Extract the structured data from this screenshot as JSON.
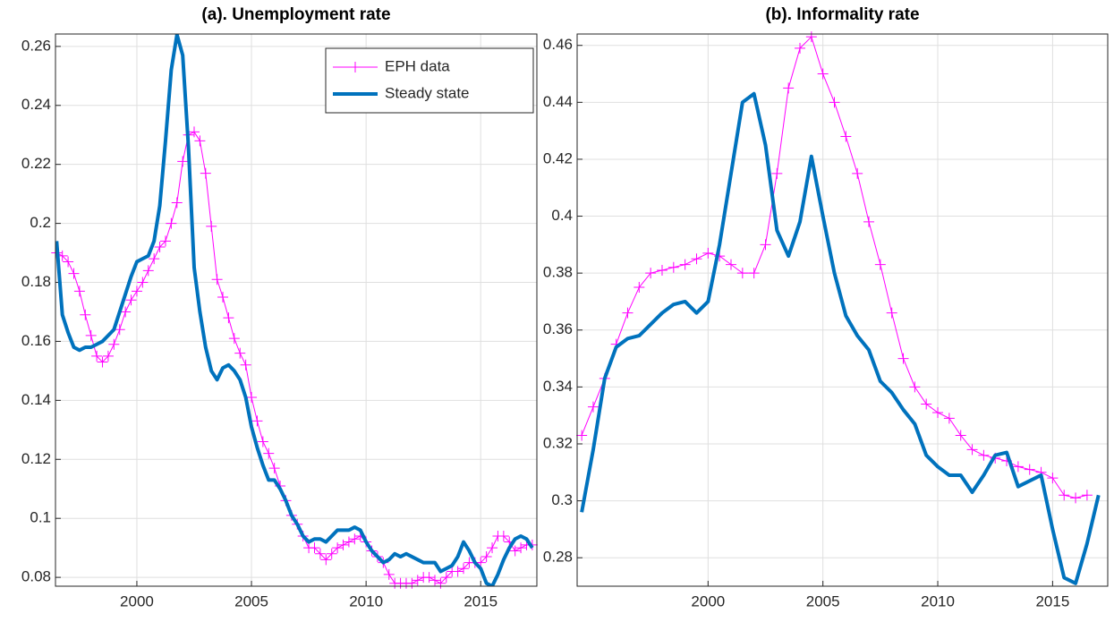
{
  "chart_data": [
    {
      "type": "line",
      "title": "(a). Unemployment rate",
      "x": [
        1996.5,
        1996.75,
        1997,
        1997.25,
        1997.5,
        1997.75,
        1998,
        1998.25,
        1998.5,
        1998.75,
        1999,
        1999.25,
        1999.5,
        1999.75,
        2000,
        2000.25,
        2000.5,
        2000.75,
        2001,
        2001.25,
        2001.5,
        2001.75,
        2002,
        2002.25,
        2002.5,
        2002.75,
        2003,
        2003.25,
        2003.5,
        2003.75,
        2004,
        2004.25,
        2004.5,
        2004.75,
        2005,
        2005.25,
        2005.5,
        2005.75,
        2006,
        2006.25,
        2006.5,
        2006.75,
        2007,
        2007.25,
        2007.5,
        2007.75,
        2008,
        2008.25,
        2008.5,
        2008.75,
        2009,
        2009.25,
        2009.5,
        2009.75,
        2010,
        2010.25,
        2010.5,
        2010.75,
        2011,
        2011.25,
        2011.5,
        2011.75,
        2012,
        2012.25,
        2012.5,
        2012.75,
        2013,
        2013.25,
        2013.5,
        2013.75,
        2014,
        2014.25,
        2014.5,
        2014.75,
        2015,
        2015.25,
        2015.5,
        2015.75,
        2016,
        2016.25,
        2016.5,
        2016.75,
        2017,
        2017.25
      ],
      "series": [
        {
          "name": "EPH data",
          "color": "#ff00ff",
          "marker": "+",
          "line_width": 1,
          "values": [
            0.19,
            0.189,
            0.187,
            0.183,
            0.177,
            0.169,
            0.162,
            0.155,
            0.153,
            0.155,
            0.159,
            0.164,
            0.17,
            0.174,
            0.177,
            0.18,
            0.184,
            0.188,
            0.192,
            0.194,
            0.2,
            0.207,
            0.221,
            0.23,
            0.231,
            0.228,
            0.217,
            0.199,
            0.181,
            0.175,
            0.168,
            0.161,
            0.156,
            0.152,
            0.141,
            0.133,
            0.126,
            0.122,
            0.117,
            0.111,
            0.106,
            0.101,
            0.098,
            0.094,
            0.09,
            0.09,
            0.088,
            0.086,
            0.088,
            0.09,
            0.091,
            0.092,
            0.093,
            0.094,
            0.092,
            0.089,
            0.087,
            0.085,
            0.081,
            0.078,
            0.078,
            0.078,
            0.078,
            0.079,
            0.08,
            0.08,
            0.079,
            0.078,
            0.08,
            0.082,
            0.082,
            0.083,
            0.085,
            0.085,
            0.085,
            0.087,
            0.09,
            0.094,
            0.094,
            0.092,
            0.089,
            0.09,
            0.091,
            0.091
          ]
        },
        {
          "name": "Steady state",
          "color": "#0072bd",
          "line_width": 4,
          "values": [
            0.194,
            0.169,
            0.163,
            0.158,
            0.157,
            0.158,
            0.158,
            0.159,
            0.16,
            0.162,
            0.164,
            0.17,
            0.176,
            0.182,
            0.187,
            0.188,
            0.189,
            0.194,
            0.206,
            0.228,
            0.252,
            0.264,
            0.257,
            0.226,
            0.185,
            0.17,
            0.158,
            0.15,
            0.147,
            0.151,
            0.152,
            0.15,
            0.147,
            0.141,
            0.131,
            0.124,
            0.118,
            0.113,
            0.113,
            0.11,
            0.106,
            0.101,
            0.098,
            0.094,
            0.092,
            0.093,
            0.093,
            0.092,
            0.094,
            0.096,
            0.096,
            0.096,
            0.097,
            0.096,
            0.092,
            0.089,
            0.087,
            0.085,
            0.086,
            0.088,
            0.087,
            0.088,
            0.087,
            0.086,
            0.085,
            0.085,
            0.085,
            0.082,
            0.083,
            0.084,
            0.087,
            0.092,
            0.089,
            0.085,
            0.083,
            0.078,
            0.077,
            0.081,
            0.086,
            0.09,
            0.093,
            0.094,
            0.093,
            0.09
          ]
        }
      ],
      "xlim": [
        1996.45,
        2017.45
      ],
      "xticks": [
        2000,
        2005,
        2010,
        2015
      ],
      "ylim": [
        0.077,
        0.2642
      ],
      "yticks": [
        0.08,
        0.1,
        0.12,
        0.14,
        0.16,
        0.18,
        0.2,
        0.22,
        0.24,
        0.26
      ],
      "grid": true,
      "legend": "upper right"
    },
    {
      "type": "line",
      "title": "(b). Informality rate",
      "x": [
        1994.5,
        1995,
        1995.5,
        1996,
        1996.5,
        1997,
        1997.5,
        1998,
        1998.5,
        1999,
        1999.5,
        2000,
        2000.5,
        2001,
        2001.5,
        2002,
        2002.5,
        2003,
        2003.5,
        2004,
        2004.5,
        2005,
        2005.5,
        2006,
        2006.5,
        2007,
        2007.5,
        2008,
        2008.5,
        2009,
        2009.5,
        2010,
        2010.5,
        2011,
        2011.5,
        2012,
        2012.5,
        2013,
        2013.5,
        2014,
        2014.5,
        2015,
        2015.5,
        2016,
        2016.5,
        2017
      ],
      "series": [
        {
          "color": "#ff00ff",
          "marker": "+",
          "line_width": 1,
          "values": [
            0.323,
            0.333,
            0.343,
            0.355,
            0.366,
            0.375,
            0.38,
            0.381,
            0.382,
            0.383,
            0.385,
            0.387,
            0.386,
            0.383,
            0.38,
            0.38,
            0.39,
            0.415,
            0.445,
            0.459,
            0.463,
            0.45,
            0.44,
            0.428,
            0.415,
            0.398,
            0.383,
            0.366,
            0.35,
            0.34,
            0.334,
            0.331,
            0.329,
            0.323,
            0.318,
            0.316,
            0.315,
            0.314,
            0.312,
            0.311,
            0.31,
            0.308,
            0.302,
            0.301,
            0.302,
            null
          ]
        },
        {
          "color": "#0072bd",
          "line_width": 4,
          "values": [
            0.296,
            0.318,
            0.343,
            0.354,
            0.357,
            0.358,
            0.362,
            0.366,
            0.369,
            0.37,
            0.366,
            0.37,
            0.39,
            0.415,
            0.44,
            0.443,
            0.425,
            0.395,
            0.386,
            0.398,
            0.421,
            0.4,
            0.38,
            0.365,
            0.358,
            0.353,
            0.342,
            0.338,
            0.332,
            0.327,
            0.316,
            0.312,
            0.309,
            0.309,
            0.303,
            0.309,
            0.316,
            0.317,
            0.305,
            0.307,
            0.309,
            0.29,
            0.273,
            0.271,
            0.285,
            0.302
          ]
        }
      ],
      "xlim": [
        1994.3,
        2017.4
      ],
      "xticks": [
        2000,
        2005,
        2010,
        2015
      ],
      "ylim": [
        0.27,
        0.464
      ],
      "yticks": [
        0.28,
        0.3,
        0.32,
        0.34,
        0.36,
        0.38,
        0.4,
        0.42,
        0.44,
        0.46
      ],
      "grid": true
    }
  ]
}
